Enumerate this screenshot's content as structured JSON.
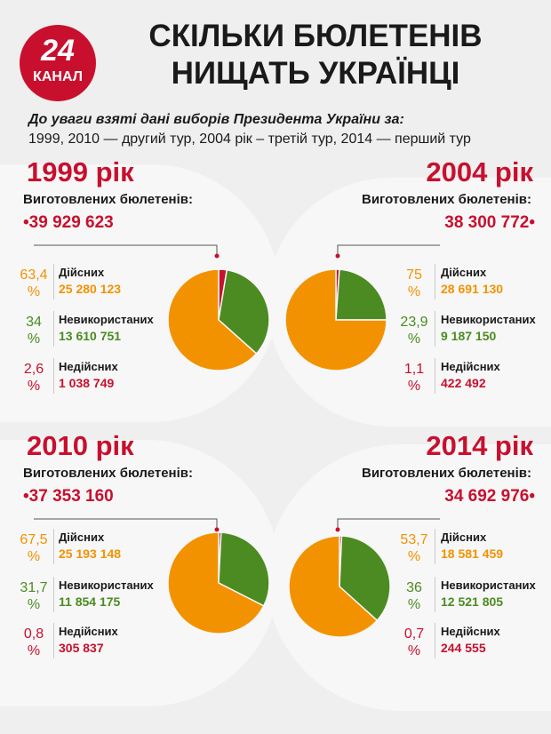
{
  "header": {
    "logo_number": "24",
    "logo_name": "КАНАЛ",
    "title_line1": "СКІЛЬКИ БЮЛЕТЕНІВ",
    "title_line2": "НИЩАТЬ УКРАЇНЦІ",
    "note_line1": "До уваги взяті дані виборів Президента України за:",
    "note_line2": "1999, 2010 — другий тур, 2004 рік – третій тур, 2014 — перший тур"
  },
  "colors": {
    "valid": "#f39200",
    "unused": "#4b8b21",
    "invalid": "#c8102e"
  },
  "chart_data": [
    {
      "type": "pie",
      "title": "1999 рік",
      "made_label": "Виготовлених бюлетенів:",
      "made_value": "39 929 623",
      "slices": [
        {
          "label": "Дійсних",
          "percent": 63.4,
          "percent_text": "63,4",
          "count": "25 280 123"
        },
        {
          "label": "Невикористаних",
          "percent": 34,
          "percent_text": "34",
          "count": "13 610 751"
        },
        {
          "label": "Недійсних",
          "percent": 2.6,
          "percent_text": "2,6",
          "count": "1 038 749"
        }
      ]
    },
    {
      "type": "pie",
      "title": "2004 рік",
      "made_label": "Виготовлених бюлетенів:",
      "made_value": "38 300 772",
      "slices": [
        {
          "label": "Дійсних",
          "percent": 75,
          "percent_text": "75",
          "count": "28 691 130"
        },
        {
          "label": "Невикористаних",
          "percent": 23.9,
          "percent_text": "23,9",
          "count": "9 187 150"
        },
        {
          "label": "Недійсних",
          "percent": 1.1,
          "percent_text": "1,1",
          "count": "422 492"
        }
      ]
    },
    {
      "type": "pie",
      "title": "2010 рік",
      "made_label": "Виготовлених бюлетенів:",
      "made_value": "37 353 160",
      "slices": [
        {
          "label": "Дійсних",
          "percent": 67.5,
          "percent_text": "67,5",
          "count": "25 193 148"
        },
        {
          "label": "Невикористаних",
          "percent": 31.7,
          "percent_text": "31,7",
          "count": "11 854 175"
        },
        {
          "label": "Недійсних",
          "percent": 0.8,
          "percent_text": "0,8",
          "count": "305 837"
        }
      ]
    },
    {
      "type": "pie",
      "title": "2014 рік",
      "made_label": "Виготовлених бюлетенів:",
      "made_value": "34 692 976",
      "slices": [
        {
          "label": "Дійсних",
          "percent": 53.7,
          "percent_text": "53,7",
          "count": "18 581 459"
        },
        {
          "label": "Невикористаних",
          "percent": 36,
          "percent_text": "36",
          "count": "12 521 805"
        },
        {
          "label": "Недійсних",
          "percent": 0.7,
          "percent_text": "0,7",
          "count": "244 555"
        }
      ]
    }
  ]
}
